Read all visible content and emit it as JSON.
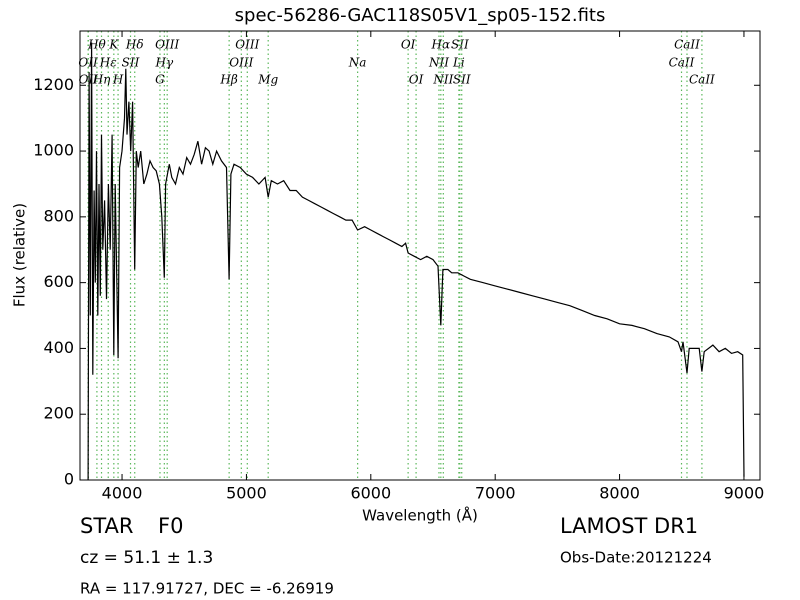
{
  "chart_data": {
    "type": "line",
    "title": "spec-56286-GAC118S05V1_sp05-152.fits",
    "x_label": "Wavelength (Å)",
    "y_label": "Flux (relative)",
    "xlim": [
      3662,
      9129
    ],
    "ylim": [
      0,
      1365
    ],
    "xticks": [
      4000,
      5000,
      6000,
      7000,
      8000,
      9000
    ],
    "yticks": [
      0,
      200,
      400,
      600,
      800,
      1000,
      1200
    ],
    "color": "#000000",
    "line_color": "#5cb85c",
    "x": [
      3727,
      3735,
      3745,
      3755,
      3765,
      3775,
      3785,
      3795,
      3805,
      3815,
      3825,
      3835,
      3845,
      3860,
      3875,
      3890,
      3905,
      3920,
      3934,
      3945,
      3968,
      3980,
      4000,
      4020,
      4030,
      4040,
      4055,
      4070,
      4085,
      4102,
      4115,
      4130,
      4150,
      4175,
      4200,
      4225,
      4250,
      4275,
      4300,
      4320,
      4340,
      4350,
      4380,
      4400,
      4430,
      4460,
      4490,
      4520,
      4550,
      4580,
      4610,
      4640,
      4670,
      4700,
      4730,
      4760,
      4800,
      4840,
      4861,
      4875,
      4900,
      4950,
      5000,
      5050,
      5100,
      5150,
      5175,
      5200,
      5250,
      5300,
      5350,
      5400,
      5450,
      5500,
      5550,
      5600,
      5650,
      5700,
      5750,
      5800,
      5850,
      5894,
      5950,
      6000,
      6050,
      6100,
      6150,
      6200,
      6250,
      6280,
      6300,
      6350,
      6400,
      6450,
      6500,
      6540,
      6563,
      6580,
      6620,
      6650,
      6700,
      6750,
      6800,
      6900,
      7000,
      7100,
      7200,
      7300,
      7400,
      7500,
      7600,
      7700,
      7800,
      7900,
      8000,
      8100,
      8200,
      8300,
      8400,
      8470,
      8498,
      8510,
      8542,
      8560,
      8600,
      8640,
      8662,
      8680,
      8750,
      8800,
      8850,
      8900,
      8950,
      8990,
      9000
    ],
    "values": [
      0,
      1240,
      500,
      1330,
      320,
      880,
      600,
      1000,
      500,
      900,
      560,
      1050,
      700,
      850,
      550,
      900,
      700,
      1050,
      380,
      900,
      370,
      950,
      1000,
      1100,
      1250,
      1050,
      1150,
      1000,
      1150,
      640,
      1000,
      950,
      1000,
      900,
      930,
      970,
      950,
      940,
      900,
      800,
      615,
      900,
      960,
      920,
      900,
      950,
      930,
      980,
      960,
      990,
      1030,
      960,
      1010,
      1000,
      960,
      1000,
      970,
      950,
      610,
      930,
      960,
      950,
      930,
      920,
      900,
      920,
      860,
      910,
      900,
      910,
      880,
      880,
      860,
      850,
      840,
      830,
      820,
      810,
      800,
      790,
      790,
      760,
      770,
      760,
      750,
      740,
      730,
      720,
      710,
      720,
      690,
      680,
      670,
      680,
      670,
      650,
      470,
      640,
      640,
      630,
      630,
      620,
      610,
      600,
      590,
      580,
      570,
      560,
      550,
      540,
      530,
      515,
      500,
      490,
      475,
      470,
      460,
      445,
      435,
      420,
      390,
      420,
      325,
      400,
      400,
      400,
      330,
      390,
      410,
      390,
      400,
      385,
      390,
      380,
      10
    ],
    "lines": [
      {
        "label": "OII",
        "x": 3727
      },
      {
        "label": "OII",
        "x": 3729
      },
      {
        "label": "Hθ",
        "x": 3798
      },
      {
        "label": "Hη",
        "x": 3835
      },
      {
        "label": "Hε",
        "x": 3889
      },
      {
        "label": "K",
        "x": 3934
      },
      {
        "label": "SII",
        "x": 4068
      },
      {
        "label": "H",
        "x": 3968
      },
      {
        "label": "Hδ",
        "x": 4102
      },
      {
        "label": "G",
        "x": 4305
      },
      {
        "label": "Hγ",
        "x": 4340
      },
      {
        "label": "OIII",
        "x": 4363
      },
      {
        "label": "Hβ",
        "x": 4861
      },
      {
        "label": "OIII",
        "x": 4959
      },
      {
        "label": "OIII",
        "x": 5007
      },
      {
        "label": "Mg",
        "x": 5175
      },
      {
        "label": "Na",
        "x": 5894
      },
      {
        "label": "OI",
        "x": 6300
      },
      {
        "label": "OI",
        "x": 6364
      },
      {
        "label": "NII",
        "x": 6548
      },
      {
        "label": "Hα",
        "x": 6563
      },
      {
        "label": "NII",
        "x": 6583
      },
      {
        "label": "Li",
        "x": 6708
      },
      {
        "label": "SII",
        "x": 6716
      },
      {
        "label": "SII",
        "x": 6731
      },
      {
        "label": "CaII",
        "x": 8498
      },
      {
        "label": "CaII",
        "x": 8542
      },
      {
        "label": "CaII",
        "x": 8662
      }
    ],
    "info": {
      "class": "STAR",
      "subclass": "F0",
      "redshift": "cz = 51.1 ± 1.3",
      "coords": "RA = 117.91727, DEC = -6.26919",
      "survey": "LAMOST DR1",
      "date": "Obs-Date:20121224"
    }
  }
}
